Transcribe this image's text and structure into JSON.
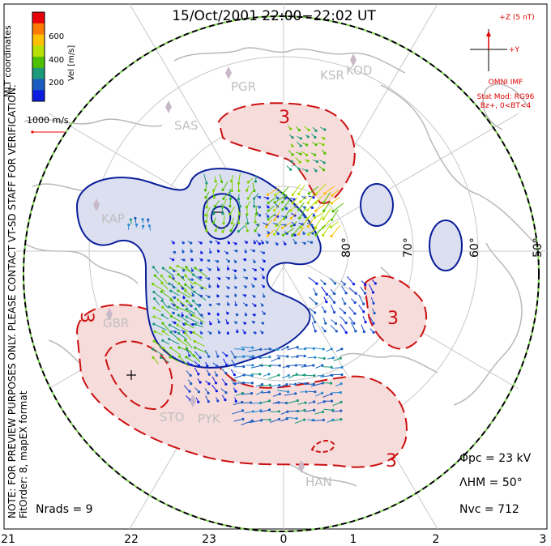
{
  "title": "15/Oct/2001  22:00−22:02  UT",
  "colorbar": {
    "label": "Vel [m/s]",
    "ticks": [
      "600",
      "400",
      "200"
    ],
    "colors": [
      "#e8000b",
      "#ff7a00",
      "#ffc000",
      "#b8e000",
      "#4fc000",
      "#1c9a7a",
      "#1a5cc0",
      "#0b1ee0"
    ]
  },
  "coord_label": "MLT coordinates",
  "speed_ref": "1000 m/s",
  "side_note_1": "NOTE: FOR PREVIEW PURPOSES ONLY. PLEASE CONTACT VT-SD STAFF FOR VERIFICATION.",
  "side_note_2": "FitOrder: 8, mapEX format",
  "imf": {
    "z_label": "+Z (5 nT)",
    "y_label": "+Y",
    "source": "OMNI IMF",
    "model_1": "Stat Mod: RG96",
    "model_2": "Bz+, 0<BT<4"
  },
  "stations": [
    "PGR",
    "KSR",
    "KOD",
    "SAS",
    "KAP",
    "GBR",
    "STO",
    "PYK",
    "HAN"
  ],
  "latitude_labels": [
    "80°",
    "70°",
    "60°",
    "50°"
  ],
  "mlt_ticks": [
    "21",
    "22",
    "23",
    "0",
    "1",
    "2",
    "3"
  ],
  "contour_labels": [
    "3",
    "3",
    "3",
    "3"
  ],
  "stats": {
    "phi_pc": "Φpc = 23 kV",
    "lambda_hm": "ΛHM = 50°",
    "n_vc": "Nvc = 712",
    "n_rads": "Nrads = 9"
  },
  "colors": {
    "positive_cell_fill": "#f7dcdc",
    "positive_cell_line": "#cc1010",
    "negative_cell_fill": "#dcdff0",
    "negative_cell_line": "#0a1e9a",
    "coastline": "#b8b8b8",
    "station": "#c8b8c8",
    "imf": "#dd0000",
    "boundary": "#7ad24a"
  }
}
